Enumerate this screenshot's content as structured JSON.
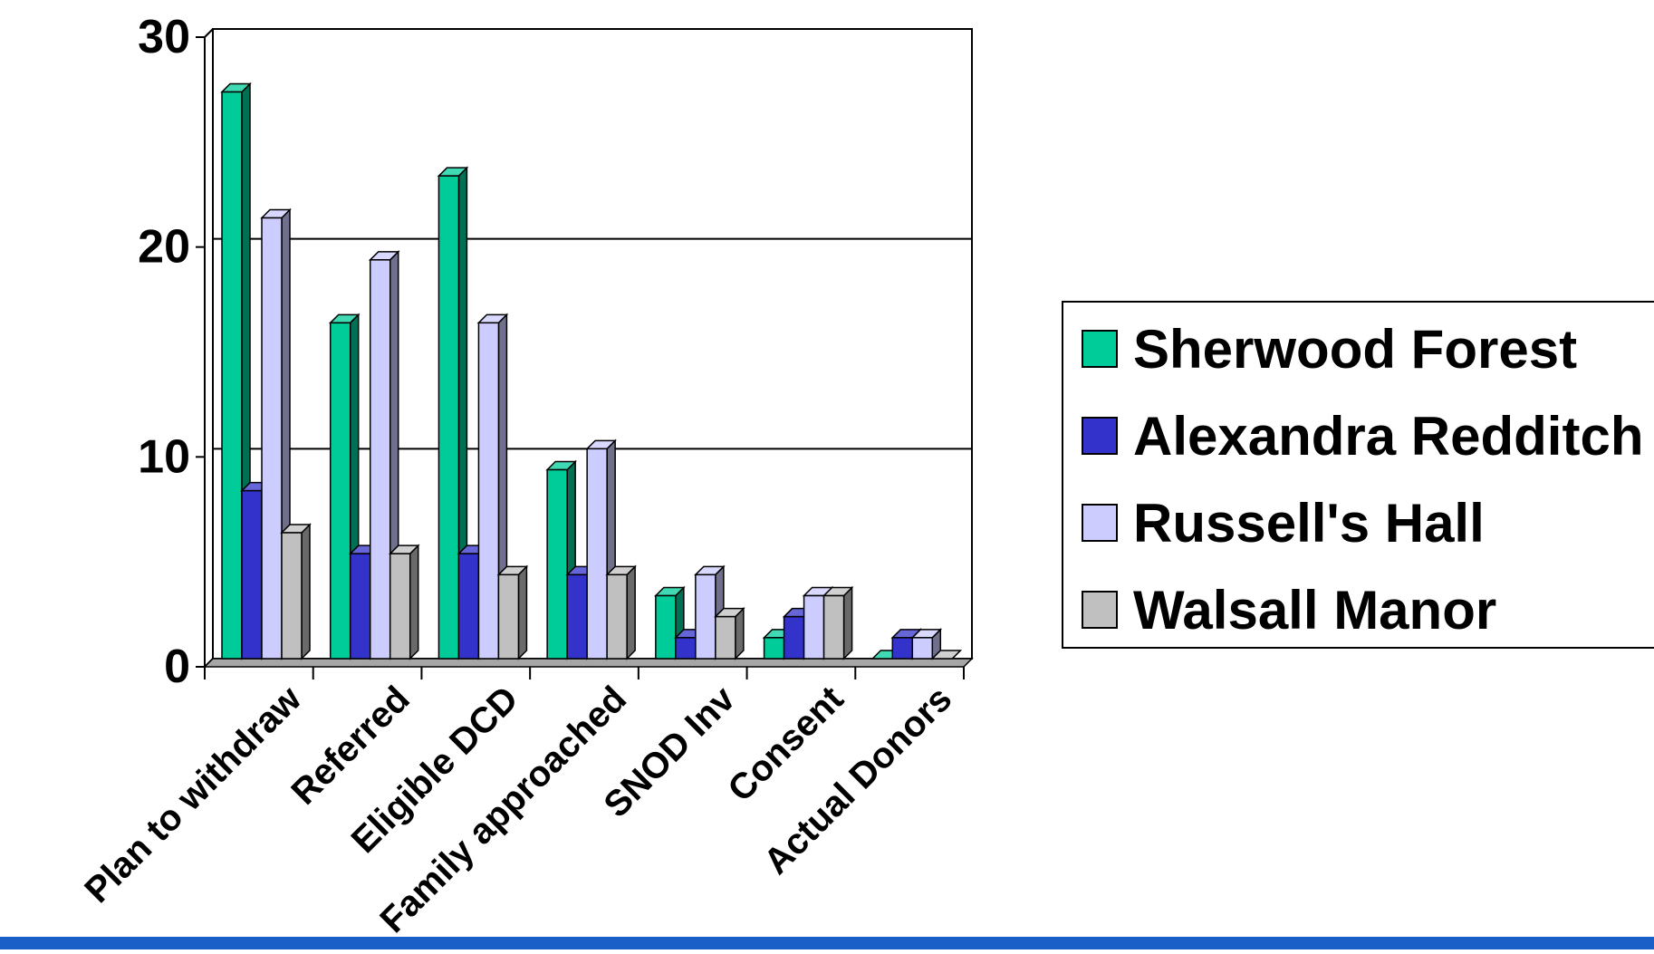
{
  "chart_data": {
    "type": "bar",
    "categories": [
      "Plan to withdraw",
      "Referred",
      "Eligible DCD",
      "Family approached",
      "SNOD Inv",
      "Consent",
      "Actual Donors"
    ],
    "series": [
      {
        "name": "Sherwood Forest",
        "color": "#00cc99",
        "values": [
          27,
          16,
          23,
          9,
          3,
          1,
          0
        ]
      },
      {
        "name": "Alexandra Redditch",
        "color": "#3333cc",
        "values": [
          8,
          5,
          5,
          4,
          1,
          2,
          1
        ]
      },
      {
        "name": "Russell's Hall",
        "color": "#ccccff",
        "values": [
          21,
          19,
          16,
          10,
          4,
          3,
          1
        ]
      },
      {
        "name": "Walsall Manor",
        "color": "#c0c0c0",
        "values": [
          6,
          5,
          4,
          4,
          2,
          3,
          0
        ]
      }
    ],
    "yticks": [
      0,
      10,
      20,
      30
    ],
    "ylim": [
      0,
      30
    ],
    "grid": true,
    "legend_position": "right",
    "three_d": true
  }
}
